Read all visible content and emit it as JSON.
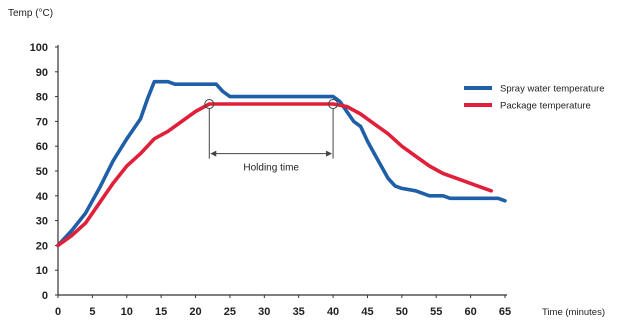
{
  "chart_data": {
    "type": "line",
    "ylabel": "Temp (°C)",
    "xlabel": "Time (minutes)",
    "xlim": [
      0,
      65
    ],
    "ylim": [
      0,
      100
    ],
    "x_ticks": [
      0,
      5,
      10,
      15,
      20,
      25,
      30,
      35,
      40,
      45,
      50,
      55,
      60,
      65
    ],
    "y_ticks": [
      0,
      10,
      20,
      30,
      40,
      50,
      60,
      70,
      80,
      90,
      100
    ],
    "legend_position": "top-right",
    "grid": false,
    "series": [
      {
        "name": "Spray water temperature",
        "color": "#1f5fa8",
        "points": [
          [
            0,
            20
          ],
          [
            2,
            26
          ],
          [
            4,
            33
          ],
          [
            6,
            43
          ],
          [
            8,
            54
          ],
          [
            10,
            63
          ],
          [
            12,
            71
          ],
          [
            13,
            79
          ],
          [
            14,
            86
          ],
          [
            16,
            86
          ],
          [
            17,
            85
          ],
          [
            20,
            85
          ],
          [
            23,
            85
          ],
          [
            24,
            82
          ],
          [
            25,
            80
          ],
          [
            30,
            80
          ],
          [
            35,
            80
          ],
          [
            40,
            80
          ],
          [
            41,
            78
          ],
          [
            42,
            74
          ],
          [
            43,
            70
          ],
          [
            44,
            68
          ],
          [
            45,
            62
          ],
          [
            46,
            57
          ],
          [
            47,
            52
          ],
          [
            48,
            47
          ],
          [
            49,
            44
          ],
          [
            50,
            43
          ],
          [
            52,
            42
          ],
          [
            54,
            40
          ],
          [
            56,
            40
          ],
          [
            57,
            39
          ],
          [
            60,
            39
          ],
          [
            62,
            39
          ],
          [
            64,
            39
          ],
          [
            65,
            38
          ]
        ]
      },
      {
        "name": "Package temperature",
        "color": "#e0203a",
        "points": [
          [
            0,
            20
          ],
          [
            2,
            24
          ],
          [
            4,
            29
          ],
          [
            6,
            37
          ],
          [
            8,
            45
          ],
          [
            10,
            52
          ],
          [
            12,
            57
          ],
          [
            14,
            63
          ],
          [
            16,
            66
          ],
          [
            18,
            70
          ],
          [
            20,
            74
          ],
          [
            22,
            77
          ],
          [
            25,
            77
          ],
          [
            30,
            77
          ],
          [
            35,
            77
          ],
          [
            40,
            77
          ],
          [
            42,
            76
          ],
          [
            44,
            73
          ],
          [
            46,
            69
          ],
          [
            48,
            65
          ],
          [
            50,
            60
          ],
          [
            52,
            56
          ],
          [
            54,
            52
          ],
          [
            56,
            49
          ],
          [
            58,
            47
          ],
          [
            60,
            45
          ],
          [
            62,
            43
          ],
          [
            63,
            42
          ]
        ]
      }
    ],
    "annotations": [
      {
        "label": "Holding time",
        "start_x": 22,
        "end_x": 40,
        "arrow_y": 57,
        "marker_y": 77
      }
    ]
  }
}
